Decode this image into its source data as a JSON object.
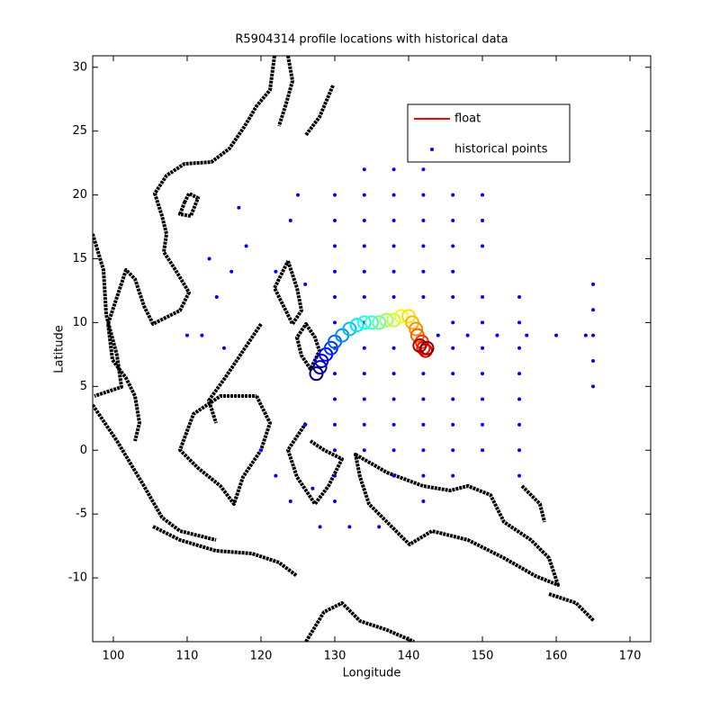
{
  "chart_data": {
    "type": "scatter",
    "title": "R5904314 profile locations with historical data",
    "x_label": "Longitude",
    "y_label": "Latitude",
    "xlim": [
      97.2,
      172.8
    ],
    "ylim": [
      -15,
      30.9
    ],
    "xticks": [
      100,
      110,
      120,
      130,
      140,
      150,
      160,
      170
    ],
    "yticks": [
      -10,
      -5,
      0,
      5,
      10,
      15,
      20,
      25,
      30
    ],
    "legend": "upper right",
    "series": [
      {
        "name": "float",
        "color": "#ff0000",
        "colormap": "jet",
        "marker": "circle",
        "x": [
          127.5,
          128,
          128.2,
          128.8,
          129.5,
          130,
          131,
          132,
          133,
          134,
          135,
          136,
          137,
          138,
          139,
          140,
          140.5,
          141,
          141.2,
          141.8,
          142,
          142.3,
          141.5,
          142.5
        ],
        "y": [
          6,
          6.5,
          7,
          7.5,
          8,
          8.5,
          9,
          9.5,
          9.8,
          10,
          10,
          10,
          10.2,
          10.2,
          10.5,
          10.5,
          10,
          9.5,
          9,
          8.5,
          8,
          7.8,
          8.2,
          8
        ]
      },
      {
        "name": "historical points",
        "color": "#0000ff",
        "marker": "dot",
        "x": [
          130,
          130,
          130,
          130,
          130,
          130,
          130,
          130,
          130,
          130,
          130,
          130,
          130,
          134,
          134,
          134,
          134,
          134,
          134,
          134,
          134,
          134,
          134,
          134,
          134,
          138,
          138,
          138,
          138,
          138,
          138,
          138,
          138,
          138,
          138,
          138,
          138,
          142,
          142,
          142,
          142,
          142,
          142,
          142,
          142,
          142,
          142,
          142,
          142,
          146,
          146,
          146,
          146,
          146,
          146,
          146,
          146,
          146,
          146,
          146,
          146,
          150,
          150,
          150,
          150,
          150,
          150,
          150,
          150,
          150,
          150,
          155,
          155,
          155,
          155,
          155,
          155,
          155,
          155,
          144,
          148,
          152,
          156,
          160,
          164,
          165,
          165,
          165,
          165,
          165,
          112,
          114,
          116,
          118,
          115,
          113,
          110,
          117,
          125,
          124,
          122,
          126,
          120,
          122,
          124,
          128,
          132,
          136,
          126,
          127
        ],
        "y": [
          20,
          18,
          16,
          14,
          12,
          10,
          8,
          6,
          4,
          2,
          0,
          -2,
          -4,
          22,
          20,
          18,
          16,
          14,
          12,
          10,
          8,
          6,
          4,
          2,
          0,
          22,
          20,
          18,
          16,
          14,
          12,
          8,
          6,
          4,
          2,
          0,
          -2,
          22,
          20,
          18,
          16,
          14,
          12,
          6,
          4,
          2,
          0,
          -2,
          -4,
          20,
          18,
          16,
          14,
          12,
          10,
          8,
          6,
          4,
          2,
          0,
          -2,
          20,
          18,
          16,
          12,
          10,
          8,
          6,
          4,
          2,
          0,
          12,
          10,
          8,
          6,
          4,
          2,
          0,
          -2,
          9,
          9,
          9,
          9,
          9,
          9,
          13,
          11,
          9,
          7,
          5,
          9,
          12,
          14,
          16,
          8,
          15,
          9,
          19,
          20,
          18,
          14,
          13,
          0,
          -2,
          -4,
          -6,
          -6,
          -6,
          2,
          -3
        ]
      }
    ]
  }
}
